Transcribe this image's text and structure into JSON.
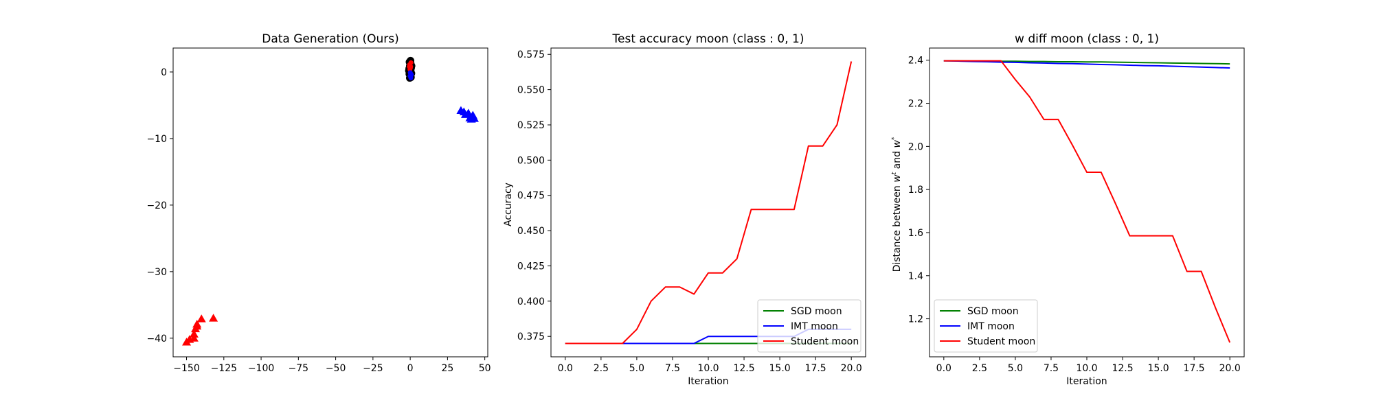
{
  "colors": {
    "green": "#008000",
    "blue": "#0000ff",
    "red": "#ff0000",
    "black": "#000000",
    "legend_border": "#cccccc"
  },
  "chart_data": [
    {
      "type": "scatter",
      "title": "Data Generation (Ours)",
      "xlabel": "",
      "ylabel": "",
      "xlim": [
        -159,
        52
      ],
      "ylim": [
        -42.8,
        3.6
      ],
      "xticks": [
        -150,
        -125,
        -100,
        -75,
        -50,
        -25,
        0,
        25,
        50
      ],
      "yticks": [
        -40,
        -30,
        -20,
        -10,
        0
      ],
      "grid": false,
      "series": [
        {
          "color": "red",
          "marker": "triangle",
          "points": [
            [
              -150,
              -40.6
            ],
            [
              -148,
              -40.2
            ],
            [
              -145,
              -40.0
            ],
            [
              -145,
              -39.4
            ],
            [
              -144,
              -38.6
            ],
            [
              -143,
              -37.9
            ],
            [
              -143,
              -38.2
            ],
            [
              -140,
              -37.1
            ],
            [
              -132,
              -37.0
            ]
          ]
        },
        {
          "color": "blue",
          "marker": "triangle",
          "points": [
            [
              34,
              -5.8
            ],
            [
              36,
              -6.0
            ],
            [
              37,
              -6.4
            ],
            [
              39,
              -6.2
            ],
            [
              40,
              -6.9
            ],
            [
              41,
              -7.1
            ],
            [
              42,
              -6.5
            ],
            [
              43,
              -7.0
            ]
          ]
        },
        {
          "color": "black",
          "marker": "circle",
          "points": [
            [
              -0.5,
              1.5
            ],
            [
              0.4,
              1.2
            ],
            [
              -0.3,
              0.9
            ],
            [
              0.6,
              0.6
            ],
            [
              -0.7,
              0.5
            ],
            [
              0.3,
              0.2
            ],
            [
              -0.2,
              -0.1
            ],
            [
              0.8,
              -0.2
            ],
            [
              -0.6,
              -0.3
            ],
            [
              0.1,
              -0.6
            ],
            [
              0.5,
              -0.8
            ],
            [
              -0.3,
              -0.9
            ],
            [
              0.2,
              1.7
            ],
            [
              0.9,
              0.9
            ],
            [
              -0.9,
              0.2
            ],
            [
              0.0,
              0.3
            ]
          ]
        },
        {
          "color": "red",
          "marker": "circle",
          "points": [
            [
              -0.4,
              1.1
            ],
            [
              0.3,
              0.8
            ],
            [
              -0.2,
              0.4
            ],
            [
              0.5,
              1.4
            ],
            [
              0.1,
              0.6
            ],
            [
              -0.6,
              0.8
            ]
          ]
        },
        {
          "color": "blue",
          "marker": "circle",
          "points": [
            [
              0.2,
              -0.2
            ],
            [
              0.6,
              -0.5
            ],
            [
              -0.1,
              -0.6
            ],
            [
              0.4,
              -0.9
            ],
            [
              0.8,
              -0.4
            ],
            [
              0.0,
              -0.1
            ]
          ]
        }
      ]
    },
    {
      "type": "line",
      "title": "Test accuracy moon (class : 0, 1)",
      "xlabel": "Iteration",
      "ylabel": "Accuracy",
      "xlim": [
        -1,
        21
      ],
      "ylim": [
        0.3605,
        0.5795
      ],
      "xticks": [
        0.0,
        2.5,
        5.0,
        7.5,
        10.0,
        12.5,
        15.0,
        17.5,
        20.0
      ],
      "xtick_labels": [
        "0.0",
        "2.5",
        "5.0",
        "7.5",
        "10.0",
        "12.5",
        "15.0",
        "17.5",
        "20.0"
      ],
      "yticks": [
        0.375,
        0.4,
        0.425,
        0.45,
        0.475,
        0.5,
        0.525,
        0.55,
        0.575
      ],
      "ytick_labels": [
        "0.375",
        "0.400",
        "0.425",
        "0.450",
        "0.475",
        "0.500",
        "0.525",
        "0.550",
        "0.575"
      ],
      "grid": false,
      "legend_position": "lower-right",
      "x": [
        0,
        1,
        2,
        3,
        4,
        5,
        6,
        7,
        8,
        9,
        10,
        11,
        12,
        13,
        14,
        15,
        16,
        17,
        18,
        19,
        20
      ],
      "series": [
        {
          "name": "SGD moon",
          "color": "green",
          "values": [
            0.37,
            0.37,
            0.37,
            0.37,
            0.37,
            0.37,
            0.37,
            0.37,
            0.37,
            0.37,
            0.37,
            0.37,
            0.37,
            0.37,
            0.37,
            0.37,
            0.37,
            0.37,
            0.37,
            0.37,
            0.37
          ]
        },
        {
          "name": "IMT moon",
          "color": "blue",
          "values": [
            0.37,
            0.37,
            0.37,
            0.37,
            0.37,
            0.37,
            0.37,
            0.37,
            0.37,
            0.37,
            0.375,
            0.375,
            0.375,
            0.375,
            0.375,
            0.375,
            0.375,
            0.38,
            0.38,
            0.38,
            0.38
          ]
        },
        {
          "name": "Student moon",
          "color": "red",
          "values": [
            0.37,
            0.37,
            0.37,
            0.37,
            0.37,
            0.38,
            0.4,
            0.41,
            0.41,
            0.405,
            0.42,
            0.42,
            0.43,
            0.465,
            0.465,
            0.465,
            0.465,
            0.51,
            0.51,
            0.525,
            0.57
          ]
        }
      ]
    },
    {
      "type": "line",
      "title": "w diff moon (class : 0, 1)",
      "xlabel": "Iteration",
      "ylabel": "Distance between w^t and w^*",
      "xlim": [
        -1,
        21
      ],
      "ylim": [
        1.0235,
        2.4565
      ],
      "xticks": [
        0.0,
        2.5,
        5.0,
        7.5,
        10.0,
        12.5,
        15.0,
        17.5,
        20.0
      ],
      "xtick_labels": [
        "0.0",
        "2.5",
        "5.0",
        "7.5",
        "10.0",
        "12.5",
        "15.0",
        "17.5",
        "20.0"
      ],
      "yticks": [
        1.2,
        1.4,
        1.6,
        1.8,
        2.0,
        2.2,
        2.4
      ],
      "ytick_labels": [
        "1.2",
        "1.4",
        "1.6",
        "1.8",
        "2.0",
        "2.2",
        "2.4"
      ],
      "grid": false,
      "legend_position": "lower-left",
      "x": [
        0,
        1,
        2,
        3,
        4,
        5,
        6,
        7,
        8,
        9,
        10,
        11,
        12,
        13,
        14,
        15,
        16,
        17,
        18,
        19,
        20
      ],
      "series": [
        {
          "name": "SGD moon",
          "color": "green",
          "values": [
            2.397,
            2.397,
            2.396,
            2.396,
            2.395,
            2.395,
            2.394,
            2.394,
            2.393,
            2.393,
            2.392,
            2.392,
            2.391,
            2.39,
            2.389,
            2.388,
            2.387,
            2.386,
            2.385,
            2.384,
            2.383
          ]
        },
        {
          "name": "IMT moon",
          "color": "blue",
          "values": [
            2.397,
            2.396,
            2.394,
            2.393,
            2.391,
            2.39,
            2.388,
            2.387,
            2.385,
            2.384,
            2.382,
            2.38,
            2.379,
            2.377,
            2.375,
            2.374,
            2.372,
            2.37,
            2.368,
            2.366,
            2.364
          ]
        },
        {
          "name": "Student moon",
          "color": "red",
          "values": [
            2.397,
            2.397,
            2.397,
            2.397,
            2.397,
            2.31,
            2.23,
            2.125,
            2.125,
            2.005,
            1.88,
            1.88,
            1.735,
            1.585,
            1.585,
            1.585,
            1.585,
            1.42,
            1.42,
            1.25,
            1.09
          ]
        }
      ]
    }
  ]
}
